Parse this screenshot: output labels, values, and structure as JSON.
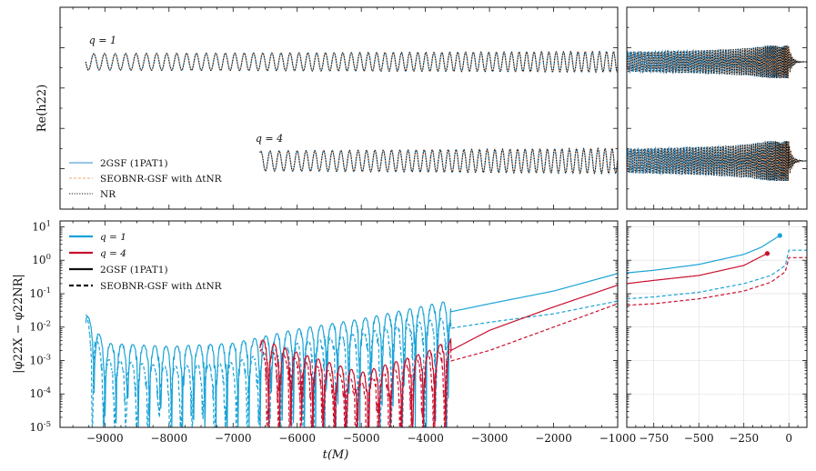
{
  "colors": {
    "q1": "#1aa3d6",
    "q4": "#c8102e",
    "seob": "#f2a16b",
    "nr": "#111111",
    "twogsf": "#2a8ecb"
  },
  "chart_data": [
    {
      "type": "line",
      "panel": "top-left",
      "ylabel": "Re(h22)",
      "annotations": [
        {
          "text": "q = 1",
          "x": -9250
        },
        {
          "text": "q = 4",
          "x": -6650
        }
      ],
      "series": [
        {
          "name": "2GSF (1PAT1)"
        },
        {
          "name": "SEOBNR-GSF with ΔtNR"
        },
        {
          "name": "NR"
        }
      ],
      "xlim": [
        -9700,
        -1000
      ],
      "waveforms": [
        {
          "label": "q = 1",
          "t_start": -9300,
          "t_end": -1000
        },
        {
          "label": "q = 4",
          "t_start": -6580,
          "t_end": -1000
        }
      ],
      "legend": "lower-left"
    },
    {
      "type": "line",
      "panel": "top-right",
      "xlim": [
        -900,
        100
      ],
      "waveforms": [
        {
          "label": "q = 1",
          "t_end": 100
        },
        {
          "label": "q = 4",
          "t_end": 100
        }
      ]
    },
    {
      "type": "line",
      "panel": "bottom-left",
      "xlabel": "t(M)",
      "ylabel": "|φ22X − φ22NR|",
      "yscale": "log",
      "ylim": [
        1e-05,
        15
      ],
      "xlim": [
        -9700,
        -1000
      ],
      "xticks": [
        "−9000",
        "−8000",
        "−7000",
        "−6000",
        "−5000",
        "−4000",
        "−3000",
        "−2000",
        "−1000"
      ],
      "yticks": [
        "10^1",
        "10^0",
        "10^-1",
        "10^-2",
        "10^-3",
        "10^-4",
        "10^-5"
      ],
      "legend_entries": [
        {
          "label": "q = 1",
          "style": "solid-q1"
        },
        {
          "label": "q = 4",
          "style": "solid-q4"
        },
        {
          "label": "2GSF (1PAT1)",
          "style": "solid-black"
        },
        {
          "label": "SEOBNR-GSF with ΔtNR",
          "style": "dashed-black"
        }
      ],
      "legend": "upper-left",
      "series": [
        {
          "name": "q = 1, 2GSF",
          "x": [
            -9300,
            -9000,
            -8000,
            -7000,
            -6000,
            -5000,
            -4000,
            -3000,
            -2000,
            -1000
          ],
          "y": [
            0.012,
            0.0015,
            0.0012,
            0.0015,
            0.004,
            0.008,
            0.02,
            0.05,
            0.12,
            0.4
          ]
        },
        {
          "name": "q = 1, SEOBNR-GSF",
          "x": [
            -9300,
            -9000,
            -8000,
            -7000,
            -6000,
            -5000,
            -4000,
            -3000,
            -2000,
            -1000
          ],
          "y": [
            0.012,
            0.0005,
            0.0003,
            0.0004,
            0.0015,
            0.003,
            0.007,
            0.014,
            0.025,
            0.06
          ]
        },
        {
          "name": "q = 4, 2GSF",
          "x": [
            -6580,
            -6000,
            -5000,
            -4000,
            -3000,
            -2000,
            -1000
          ],
          "y": [
            0.002,
            0.0008,
            0.0002,
            0.0008,
            0.008,
            0.04,
            0.18
          ]
        },
        {
          "name": "q = 4, SEOBNR-GSF",
          "x": [
            -6580,
            -6000,
            -5000,
            -4000,
            -3000,
            -2000,
            -1000
          ],
          "y": [
            0.001,
            0.0005,
            0.0001,
            0.0006,
            0.002,
            0.01,
            0.05
          ]
        }
      ]
    },
    {
      "type": "line",
      "panel": "bottom-right",
      "xlim": [
        -900,
        100
      ],
      "xticks": [
        "−750",
        "−500",
        "−250",
        "0"
      ],
      "series": [
        {
          "name": "q = 1, 2GSF",
          "x": [
            -900,
            -750,
            -500,
            -250,
            -150,
            -50
          ],
          "y": [
            0.42,
            0.5,
            0.75,
            1.5,
            2.5,
            5.5
          ]
        },
        {
          "name": "q = 1, SEOBNR-GSF",
          "x": [
            -900,
            -750,
            -500,
            -250,
            -100,
            -20,
            0,
            100
          ],
          "y": [
            0.07,
            0.08,
            0.11,
            0.2,
            0.35,
            0.7,
            2.0,
            2.0
          ]
        },
        {
          "name": "q = 4, 2GSF",
          "x": [
            -900,
            -750,
            -500,
            -250,
            -120
          ],
          "y": [
            0.2,
            0.25,
            0.35,
            0.7,
            1.6
          ]
        },
        {
          "name": "q = 4, SEOBNR-GSF",
          "x": [
            -900,
            -750,
            -500,
            -250,
            -100,
            -20,
            0,
            100
          ],
          "y": [
            0.045,
            0.05,
            0.07,
            0.12,
            0.22,
            0.45,
            1.2,
            1.2
          ]
        }
      ],
      "markers": [
        {
          "series": "q = 1, 2GSF",
          "x": -50,
          "y": 5.5
        },
        {
          "series": "q = 4, 2GSF",
          "x": -120,
          "y": 1.6
        }
      ]
    }
  ]
}
